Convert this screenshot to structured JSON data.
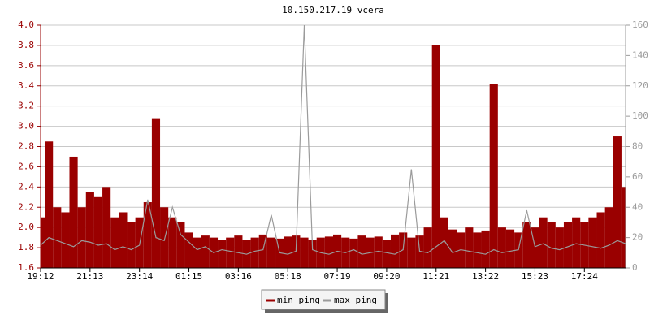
{
  "chart_data": {
    "type": "area",
    "title": "10.150.217.19 vcera",
    "categories": [
      "19:12",
      null,
      null,
      null,
      null,
      null,
      "21:13",
      null,
      null,
      null,
      null,
      null,
      "23:14",
      null,
      null,
      null,
      null,
      null,
      "01:15",
      null,
      null,
      null,
      null,
      null,
      "03:16",
      null,
      null,
      null,
      null,
      null,
      "05:18",
      null,
      null,
      null,
      null,
      null,
      "07:19",
      null,
      null,
      null,
      null,
      null,
      "09:20",
      null,
      null,
      null,
      null,
      null,
      "11:21",
      null,
      null,
      null,
      null,
      null,
      "13:22",
      null,
      null,
      null,
      null,
      null,
      "15:23",
      null,
      null,
      null,
      null,
      null,
      "17:24",
      null,
      null,
      null,
      null,
      null
    ],
    "series": [
      {
        "name": "min ping",
        "color": "#9a0000",
        "values": [
          2.1,
          2.85,
          2.2,
          2.15,
          2.7,
          2.2,
          2.35,
          2.3,
          2.4,
          2.1,
          2.15,
          2.05,
          2.1,
          2.25,
          3.08,
          2.2,
          2.1,
          2.05,
          1.95,
          1.9,
          1.92,
          1.9,
          1.88,
          1.9,
          1.92,
          1.88,
          1.9,
          1.93,
          1.9,
          1.89,
          1.91,
          1.92,
          1.9,
          1.88,
          1.9,
          1.91,
          1.93,
          1.9,
          1.89,
          1.92,
          1.9,
          1.91,
          1.88,
          1.93,
          1.95,
          1.9,
          1.92,
          2.0,
          3.8,
          2.1,
          1.98,
          1.95,
          2.0,
          1.95,
          1.97,
          3.42,
          2.0,
          1.98,
          1.95,
          2.05,
          2.0,
          2.1,
          2.05,
          2.0,
          2.05,
          2.1,
          2.05,
          2.1,
          2.15,
          2.2,
          2.9,
          2.4
        ]
      },
      {
        "name": "max ping",
        "color": "#9b9b9b",
        "axis": "y2",
        "values": [
          15,
          20,
          18,
          16,
          14,
          18,
          17,
          15,
          16,
          12,
          14,
          12,
          15,
          45,
          20,
          18,
          40,
          22,
          17,
          12,
          14,
          10,
          12,
          11,
          10,
          9,
          11,
          12,
          35,
          10,
          9,
          11,
          160,
          12,
          10,
          9,
          11,
          10,
          12,
          9,
          10,
          11,
          10,
          9,
          12,
          65,
          11,
          10,
          14,
          18,
          10,
          12,
          11,
          10,
          9,
          12,
          10,
          11,
          12,
          38,
          14,
          16,
          13,
          12,
          14,
          16,
          15,
          14,
          13,
          15,
          18,
          16
        ]
      }
    ],
    "ylim": [
      1.6,
      4.0
    ],
    "yticks": [
      1.6,
      1.8,
      {
        "value": 2,
        "label": "2.0"
      },
      2.2,
      2.4,
      2.6,
      2.8,
      {
        "value": 3,
        "label": "3.0"
      },
      3.2,
      3.4,
      3.6,
      3.8,
      {
        "value": 4,
        "label": "4.0"
      }
    ],
    "y2lim": [
      0,
      160
    ],
    "y2ticks": [
      0,
      20,
      40,
      60,
      80,
      100,
      120,
      140,
      160
    ],
    "grid": true
  }
}
